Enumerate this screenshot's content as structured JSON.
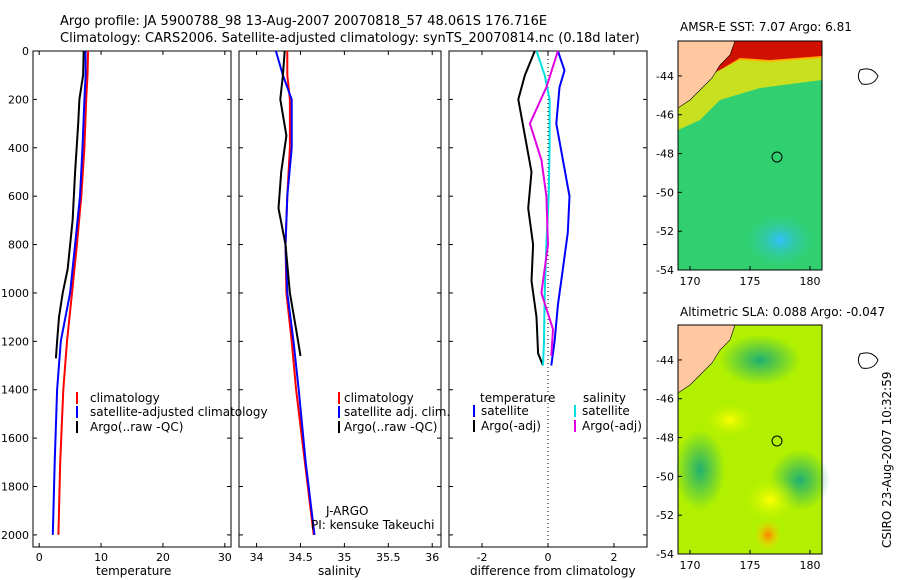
{
  "header": {
    "line1": "Argo profile: JA 5900788_98 13-Aug-2007 20070818_57 48.061S 176.716E",
    "line2": "Climatology: CARS2006. Satellite-adjusted climatology: synTS_20070814.nc (0.18d later)"
  },
  "colors": {
    "climatology": "#ff0000",
    "satellite": "#0000ff",
    "argo": "#000000",
    "argo_salinity_diff": "#e000e0",
    "satellite_salinity_diff": "#00e0e0",
    "land": "#ffc8a0"
  },
  "credit": {
    "text": "CSIRO 23-Aug-2007 10:32:59"
  },
  "chart_data": [
    {
      "type": "line",
      "xlabel": "temperature",
      "xlim": [
        -1,
        31
      ],
      "ylim": [
        2050,
        0
      ],
      "xticks": [
        0,
        10,
        20,
        30
      ],
      "yticks": [
        0,
        200,
        400,
        600,
        800,
        1000,
        1200,
        1400,
        1600,
        1800,
        2000
      ],
      "legend": [
        "climatology",
        "satellite-adjusted climatology",
        "Argo(..raw -QC)"
      ],
      "legend_position": "lower-right",
      "series": [
        {
          "name": "climatology",
          "color": "#ff0000",
          "x": [
            7.9,
            7.8,
            7.6,
            7.3,
            6.8,
            6.1,
            5.3,
            4.5,
            3.9,
            3.4,
            3.1
          ],
          "y": [
            0,
            100,
            200,
            400,
            600,
            800,
            1000,
            1200,
            1400,
            1700,
            2000
          ]
        },
        {
          "name": "satellite-adjusted climatology",
          "color": "#0000ff",
          "x": [
            7.5,
            7.5,
            7.3,
            7.0,
            6.6,
            5.8,
            5.0,
            3.5,
            2.9,
            2.5,
            2.2
          ],
          "y": [
            0,
            100,
            200,
            400,
            600,
            800,
            1000,
            1200,
            1400,
            1700,
            2000
          ]
        },
        {
          "name": "Argo(..raw -QC)",
          "color": "#000000",
          "x": [
            7.2,
            7.1,
            6.5,
            6.3,
            5.8,
            5.4,
            4.6,
            3.8,
            3.2,
            2.9,
            2.7
          ],
          "y": [
            0,
            100,
            200,
            300,
            500,
            700,
            900,
            1000,
            1100,
            1200,
            1270
          ]
        }
      ]
    },
    {
      "type": "line",
      "xlabel": "salinity",
      "xlim": [
        33.8,
        36.1
      ],
      "ylim": [
        2050,
        0
      ],
      "xticks": [
        34,
        34.5,
        35,
        35.5,
        36
      ],
      "legend": [
        "climatology",
        "satellite adj. clim.",
        "Argo(..raw -QC)"
      ],
      "legend_position": "lower-right",
      "annotations": [
        "J-ARGO",
        "PI: kensuke Takeuchi"
      ],
      "series": [
        {
          "name": "climatology",
          "color": "#ff0000",
          "x": [
            34.35,
            34.35,
            34.38,
            34.38,
            34.35,
            34.33,
            34.34,
            34.4,
            34.45,
            34.55,
            34.65
          ],
          "y": [
            0,
            100,
            200,
            400,
            600,
            800,
            1000,
            1200,
            1400,
            1700,
            2000
          ]
        },
        {
          "name": "satellite adj. clim.",
          "color": "#0000ff",
          "x": [
            34.22,
            34.3,
            34.4,
            34.4,
            34.35,
            34.33,
            34.35,
            34.42,
            34.48,
            34.56,
            34.66
          ],
          "y": [
            0,
            100,
            200,
            400,
            600,
            800,
            1000,
            1200,
            1400,
            1700,
            2000
          ]
        },
        {
          "name": "Argo(..raw -QC)",
          "color": "#000000",
          "x": [
            34.32,
            34.3,
            34.27,
            34.34,
            34.28,
            34.25,
            34.33,
            34.38,
            34.45,
            34.5
          ],
          "y": [
            0,
            100,
            200,
            350,
            500,
            650,
            800,
            1000,
            1150,
            1260
          ]
        }
      ]
    },
    {
      "type": "line",
      "xlabel": "difference from climatology",
      "xlim": [
        -3,
        3
      ],
      "ylim": [
        2050,
        0
      ],
      "xticks": [
        -2,
        0,
        2
      ],
      "legend_temperature": [
        "temperature",
        "satellite",
        "Argo(-adj)"
      ],
      "legend_salinity": [
        "salinity",
        "satellite",
        "Argo(-adj)"
      ],
      "legend_position": "lower",
      "series": [
        {
          "name": "satellite",
          "group": "temperature",
          "color": "#0000ff",
          "x": [
            0.3,
            0.5,
            0.35,
            0.25,
            0.45,
            0.65,
            0.6,
            0.45,
            0.3,
            0.2,
            0.1
          ],
          "y": [
            0,
            80,
            150,
            300,
            450,
            600,
            750,
            900,
            1050,
            1200,
            1300
          ]
        },
        {
          "name": "Argo(-adj)",
          "group": "temperature",
          "color": "#000000",
          "x": [
            -0.4,
            -0.7,
            -0.9,
            -0.7,
            -0.5,
            -0.6,
            -0.45,
            -0.5,
            -0.35,
            -0.3,
            -0.15
          ],
          "y": [
            0,
            100,
            200,
            350,
            500,
            650,
            800,
            950,
            1100,
            1250,
            1300
          ]
        },
        {
          "name": "satellite",
          "group": "salinity",
          "color": "#00e0e0",
          "x": [
            -0.35,
            -0.1,
            0.05,
            0.05,
            0.02,
            -0.05,
            -0.1,
            -0.12,
            -0.15
          ],
          "y": [
            0,
            100,
            200,
            400,
            600,
            800,
            1000,
            1200,
            1300
          ]
        },
        {
          "name": "Argo(-adj)",
          "group": "salinity",
          "color": "#e000e0",
          "x": [
            0.3,
            -0.05,
            -0.55,
            -0.2,
            -0.05,
            0.0,
            -0.2,
            0.15,
            0.1
          ],
          "y": [
            0,
            150,
            300,
            450,
            600,
            800,
            1000,
            1150,
            1260
          ]
        }
      ]
    },
    {
      "type": "heatmap",
      "title": "AMSR-E SST: 7.07  Argo: 6.81",
      "xlim": [
        169,
        181
      ],
      "ylim": [
        -54,
        -42.2
      ],
      "xticks": [
        170,
        175,
        180
      ],
      "yticks": [
        -44,
        -46,
        -48,
        -50,
        -52,
        -54
      ],
      "float_position": {
        "lon": 176.716,
        "lat": -48.061
      }
    },
    {
      "type": "heatmap",
      "title": "Altimetric SLA: 0.088  Argo: -0.047",
      "xlim": [
        169,
        181
      ],
      "ylim": [
        -54,
        -42.2
      ],
      "xticks": [
        170,
        175,
        180
      ],
      "yticks": [
        -44,
        -46,
        -48,
        -50,
        -52,
        -54
      ],
      "float_position": {
        "lon": 176.716,
        "lat": -48.061
      }
    }
  ]
}
